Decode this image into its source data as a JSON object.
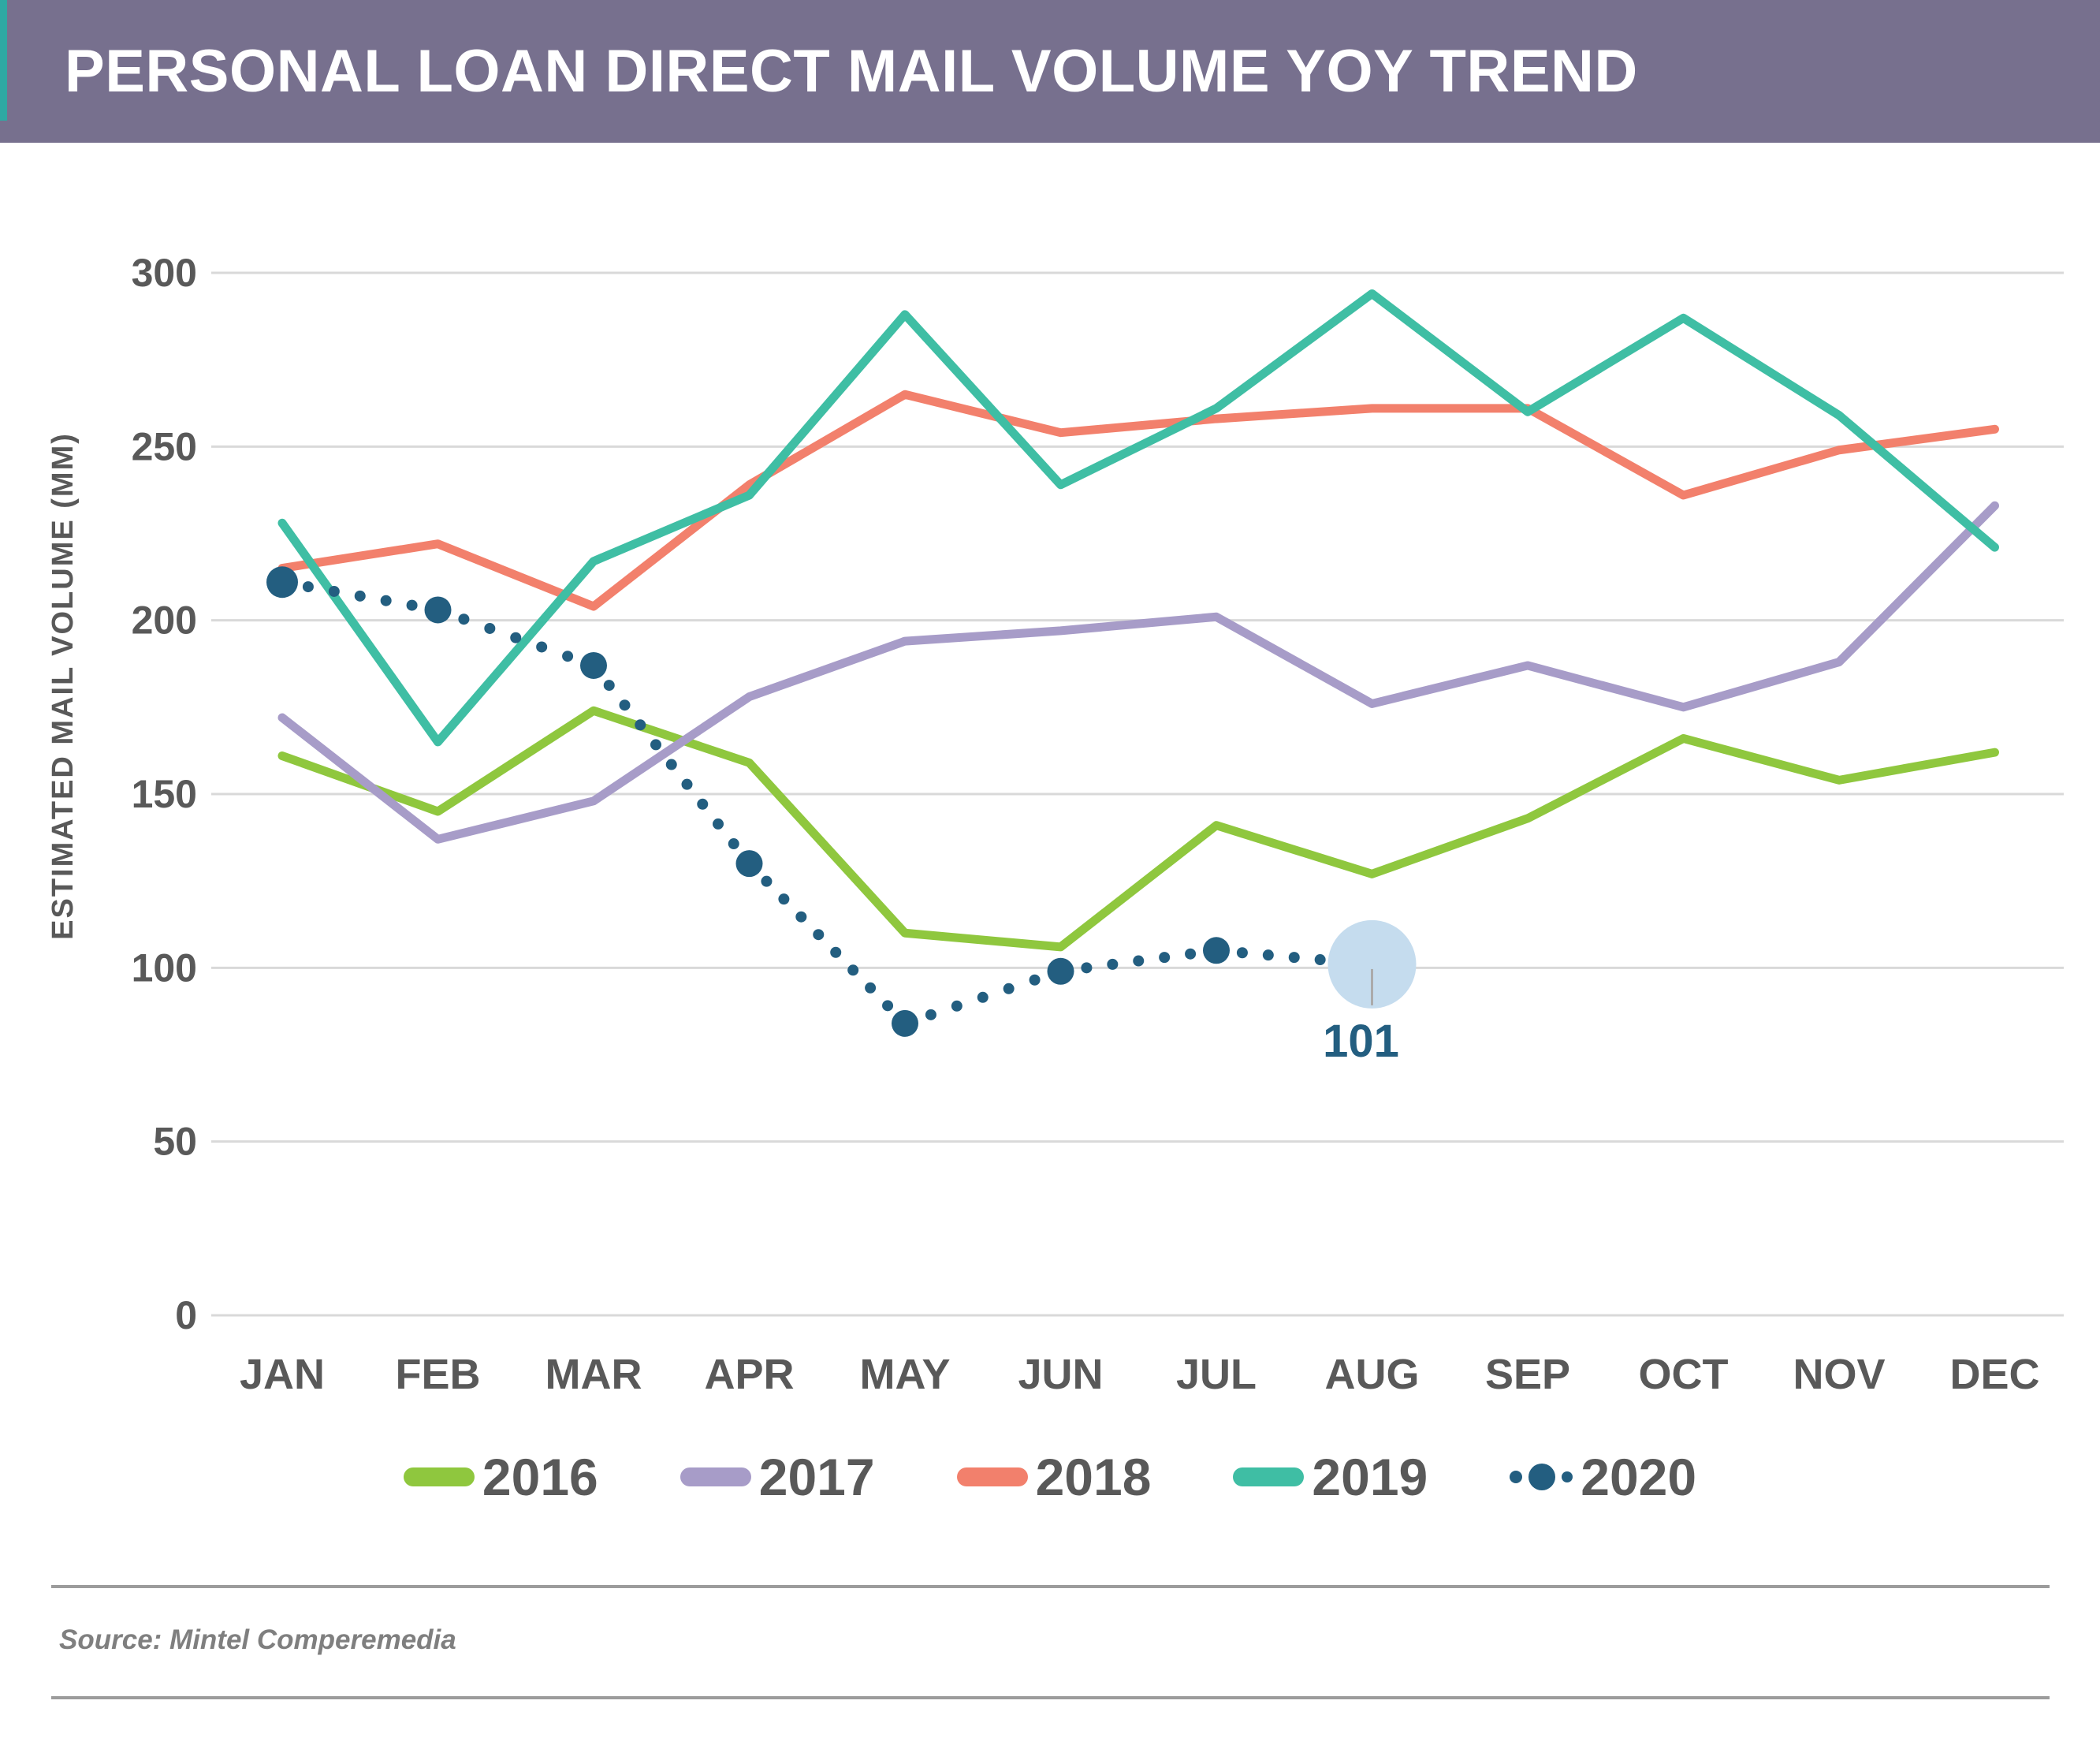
{
  "header": {
    "title": "PERSONAL LOAN DIRECT MAIL VOLUME YOY TREND"
  },
  "theme": {
    "header_bg": "#77708E",
    "header_accent": "#2FA8A3",
    "grid": "#D9D9D9",
    "axis_text": "#595959",
    "divider": "#9C9C9C",
    "source_text": "#7F7F7F",
    "leader": "#ABABAB",
    "annot": "#235E80"
  },
  "chart_data": {
    "type": "line",
    "title": "PERSONAL LOAN DIRECT MAIL VOLUME YOY TREND",
    "xlabel": "",
    "ylabel": "ESTIMATED MAIL VOLUME (MM)",
    "ylim": [
      0,
      300
    ],
    "y_ticks": [
      300,
      250,
      200,
      150,
      100,
      50,
      0
    ],
    "grid": "horizontal",
    "legend_position": "bottom",
    "categories": [
      "JAN",
      "FEB",
      "MAR",
      "APR",
      "MAY",
      "JUN",
      "JUL",
      "AUG",
      "SEP",
      "OCT",
      "NOV",
      "DEC"
    ],
    "series": [
      {
        "name": "2016",
        "color": "#8FC73E",
        "style": "solid",
        "values": [
          161,
          145,
          174,
          159,
          110,
          106,
          141,
          127,
          143,
          166,
          154,
          162
        ]
      },
      {
        "name": "2017",
        "color": "#A79CC8",
        "style": "solid",
        "values": [
          172,
          137,
          148,
          178,
          194,
          197,
          201,
          176,
          187,
          175,
          188,
          233
        ]
      },
      {
        "name": "2018",
        "color": "#F2806C",
        "style": "solid",
        "values": [
          215,
          222,
          204,
          239,
          265,
          254,
          258,
          261,
          261,
          236,
          249,
          255
        ]
      },
      {
        "name": "2019",
        "color": "#3FBEA4",
        "style": "solid",
        "values": [
          228,
          165,
          217,
          236,
          288,
          239,
          261,
          294,
          260,
          287,
          259,
          221
        ]
      },
      {
        "name": "2020",
        "color": "#235E80",
        "style": "dotted",
        "values": [
          211,
          203,
          187,
          130,
          84,
          99,
          105,
          101
        ]
      }
    ],
    "annotation": {
      "series": "2020",
      "category": "AUG",
      "label": "101",
      "halo_color": "#C5DCEE"
    }
  },
  "source": {
    "text": "Source: Mintel Comperemedia"
  }
}
